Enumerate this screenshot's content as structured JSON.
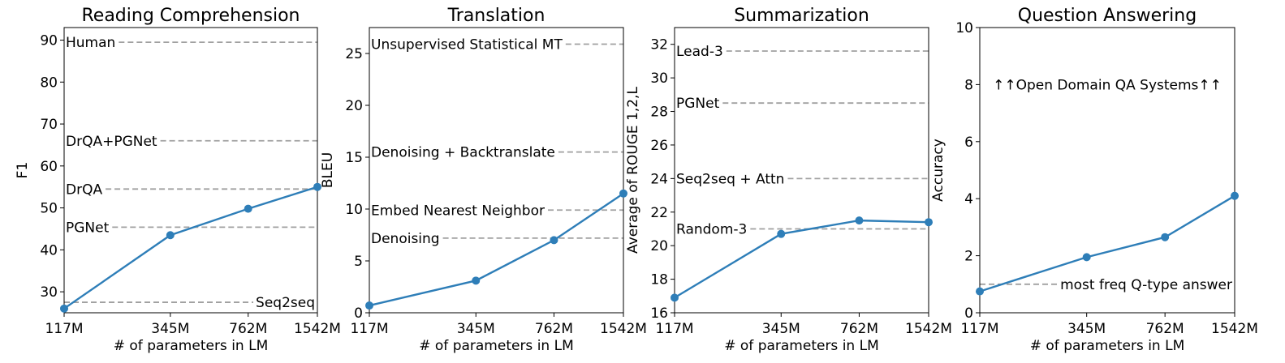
{
  "chart_data": [
    {
      "type": "line",
      "title": "Reading Comprehension",
      "xlabel": "# of parameters in LM",
      "ylabel": "F1",
      "xscale": "log",
      "x": [
        117,
        345,
        762,
        1542
      ],
      "x_tick_labels": [
        "117M",
        "345M",
        "762M",
        "1542M"
      ],
      "ylim": [
        25,
        93
      ],
      "yticks": [
        30,
        40,
        50,
        60,
        70,
        80,
        90
      ],
      "grid": false,
      "series": [
        {
          "values": [
            26,
            43.5,
            49.8,
            55
          ]
        }
      ],
      "reference_lines": [
        {
          "label": "Human",
          "value": 89.5,
          "label_align": "left"
        },
        {
          "label": "DrQA+PGNet",
          "value": 66,
          "label_align": "left"
        },
        {
          "label": "DrQA",
          "value": 54.5,
          "label_align": "left"
        },
        {
          "label": "PGNet",
          "value": 45.4,
          "label_align": "left"
        },
        {
          "label": "Seq2seq",
          "value": 27.5,
          "label_align": "right"
        }
      ]
    },
    {
      "type": "line",
      "title": "Translation",
      "xlabel": "# of parameters in LM",
      "ylabel": "BLEU",
      "xscale": "log",
      "x": [
        117,
        345,
        762,
        1542
      ],
      "x_tick_labels": [
        "117M",
        "345M",
        "762M",
        "1542M"
      ],
      "ylim": [
        0,
        27.5
      ],
      "yticks": [
        0,
        5,
        10,
        15,
        20,
        25
      ],
      "grid": false,
      "series": [
        {
          "values": [
            0.7,
            3.1,
            7.0,
            11.5
          ]
        }
      ],
      "reference_lines": [
        {
          "label": "Unsupervised Statistical MT",
          "value": 25.9,
          "label_align": "left"
        },
        {
          "label": "Denoising + Backtranslate",
          "value": 15.5,
          "label_align": "left"
        },
        {
          "label": "Embed Nearest Neighbor",
          "value": 9.9,
          "label_align": "left"
        },
        {
          "label": "Denoising",
          "value": 7.2,
          "label_align": "left"
        }
      ]
    },
    {
      "type": "line",
      "title": "Summarization",
      "xlabel": "# of parameters in LM",
      "ylabel": "Average of ROUGE 1,2,L",
      "xscale": "log",
      "x": [
        117,
        345,
        762,
        1542
      ],
      "x_tick_labels": [
        "117M",
        "345M",
        "762M",
        "1542M"
      ],
      "ylim": [
        16,
        33
      ],
      "yticks": [
        16,
        18,
        20,
        22,
        24,
        26,
        28,
        30,
        32
      ],
      "grid": false,
      "series": [
        {
          "values": [
            16.9,
            20.7,
            21.5,
            21.4
          ]
        }
      ],
      "reference_lines": [
        {
          "label": "Lead-3",
          "value": 31.6,
          "label_align": "left"
        },
        {
          "label": "PGNet",
          "value": 28.5,
          "label_align": "left"
        },
        {
          "label": "Seq2seq + Attn",
          "value": 24,
          "label_align": "left"
        },
        {
          "label": "Random-3",
          "value": 21,
          "label_align": "left"
        }
      ]
    },
    {
      "type": "line",
      "title": "Question Answering",
      "xlabel": "# of parameters in LM",
      "ylabel": "Accuracy",
      "xscale": "log",
      "x": [
        117,
        345,
        762,
        1542
      ],
      "x_tick_labels": [
        "117M",
        "345M",
        "762M",
        "1542M"
      ],
      "ylim": [
        0,
        10
      ],
      "yticks": [
        0,
        2,
        4,
        6,
        8,
        10
      ],
      "grid": false,
      "series": [
        {
          "values": [
            0.75,
            1.95,
            2.65,
            4.1
          ]
        }
      ],
      "reference_lines": [
        {
          "label": "most freq Q-type answer",
          "value": 1.0,
          "label_align": "right"
        }
      ],
      "annotations": [
        {
          "text": "↑↑Open Domain QA Systems↑↑",
          "y": 8
        }
      ]
    }
  ]
}
